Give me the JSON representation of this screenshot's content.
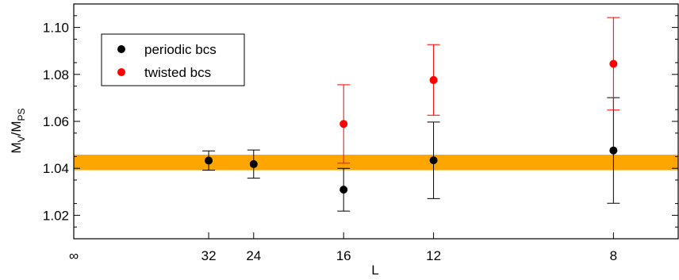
{
  "chart_data": {
    "type": "scatter",
    "xlabel": "L",
    "ylabel": {
      "main": "M",
      "sub1": "V",
      "slash": "/M",
      "sub2": "PS"
    },
    "ylim": [
      1.01,
      1.11
    ],
    "yticks": [
      "1.02",
      "1.04",
      "1.06",
      "1.08",
      "1.10"
    ],
    "x_scale": "reciprocal (1/L)",
    "xlim_inverse_L": [
      0,
      0.14
    ],
    "xticks": [
      {
        "label": "∞",
        "L": "inf"
      },
      {
        "label": "32",
        "L": 32
      },
      {
        "label": "24",
        "L": 24
      },
      {
        "label": "16",
        "L": 16
      },
      {
        "label": "12",
        "L": 12
      },
      {
        "label": "8",
        "L": 8
      }
    ],
    "band": {
      "low": 1.0392,
      "high": 1.0458,
      "color": "#FFA500"
    },
    "legend_position": "top-left",
    "series": [
      {
        "name": "periodic bcs",
        "color": "#000000",
        "points": [
          {
            "L": 32,
            "y": 1.0433,
            "err_low": 1.0392,
            "err_high": 1.0474
          },
          {
            "L": 24,
            "y": 1.0418,
            "err_low": 1.0358,
            "err_high": 1.0478
          },
          {
            "L": 16,
            "y": 1.0309,
            "err_low": 1.0218,
            "err_high": 1.04
          },
          {
            "L": 12,
            "y": 1.0434,
            "err_low": 1.0271,
            "err_high": 1.0597
          },
          {
            "L": 8,
            "y": 1.0476,
            "err_low": 1.0251,
            "err_high": 1.0701
          }
        ]
      },
      {
        "name": "twisted bcs",
        "color": "#FF0000",
        "points": [
          {
            "L": 16,
            "y": 1.0589,
            "err_low": 1.0422,
            "err_high": 1.0756
          },
          {
            "L": 12,
            "y": 1.0776,
            "err_low": 1.0626,
            "err_high": 1.0927
          },
          {
            "L": 8,
            "y": 1.0845,
            "err_low": 1.0648,
            "err_high": 1.1042
          }
        ]
      }
    ]
  }
}
